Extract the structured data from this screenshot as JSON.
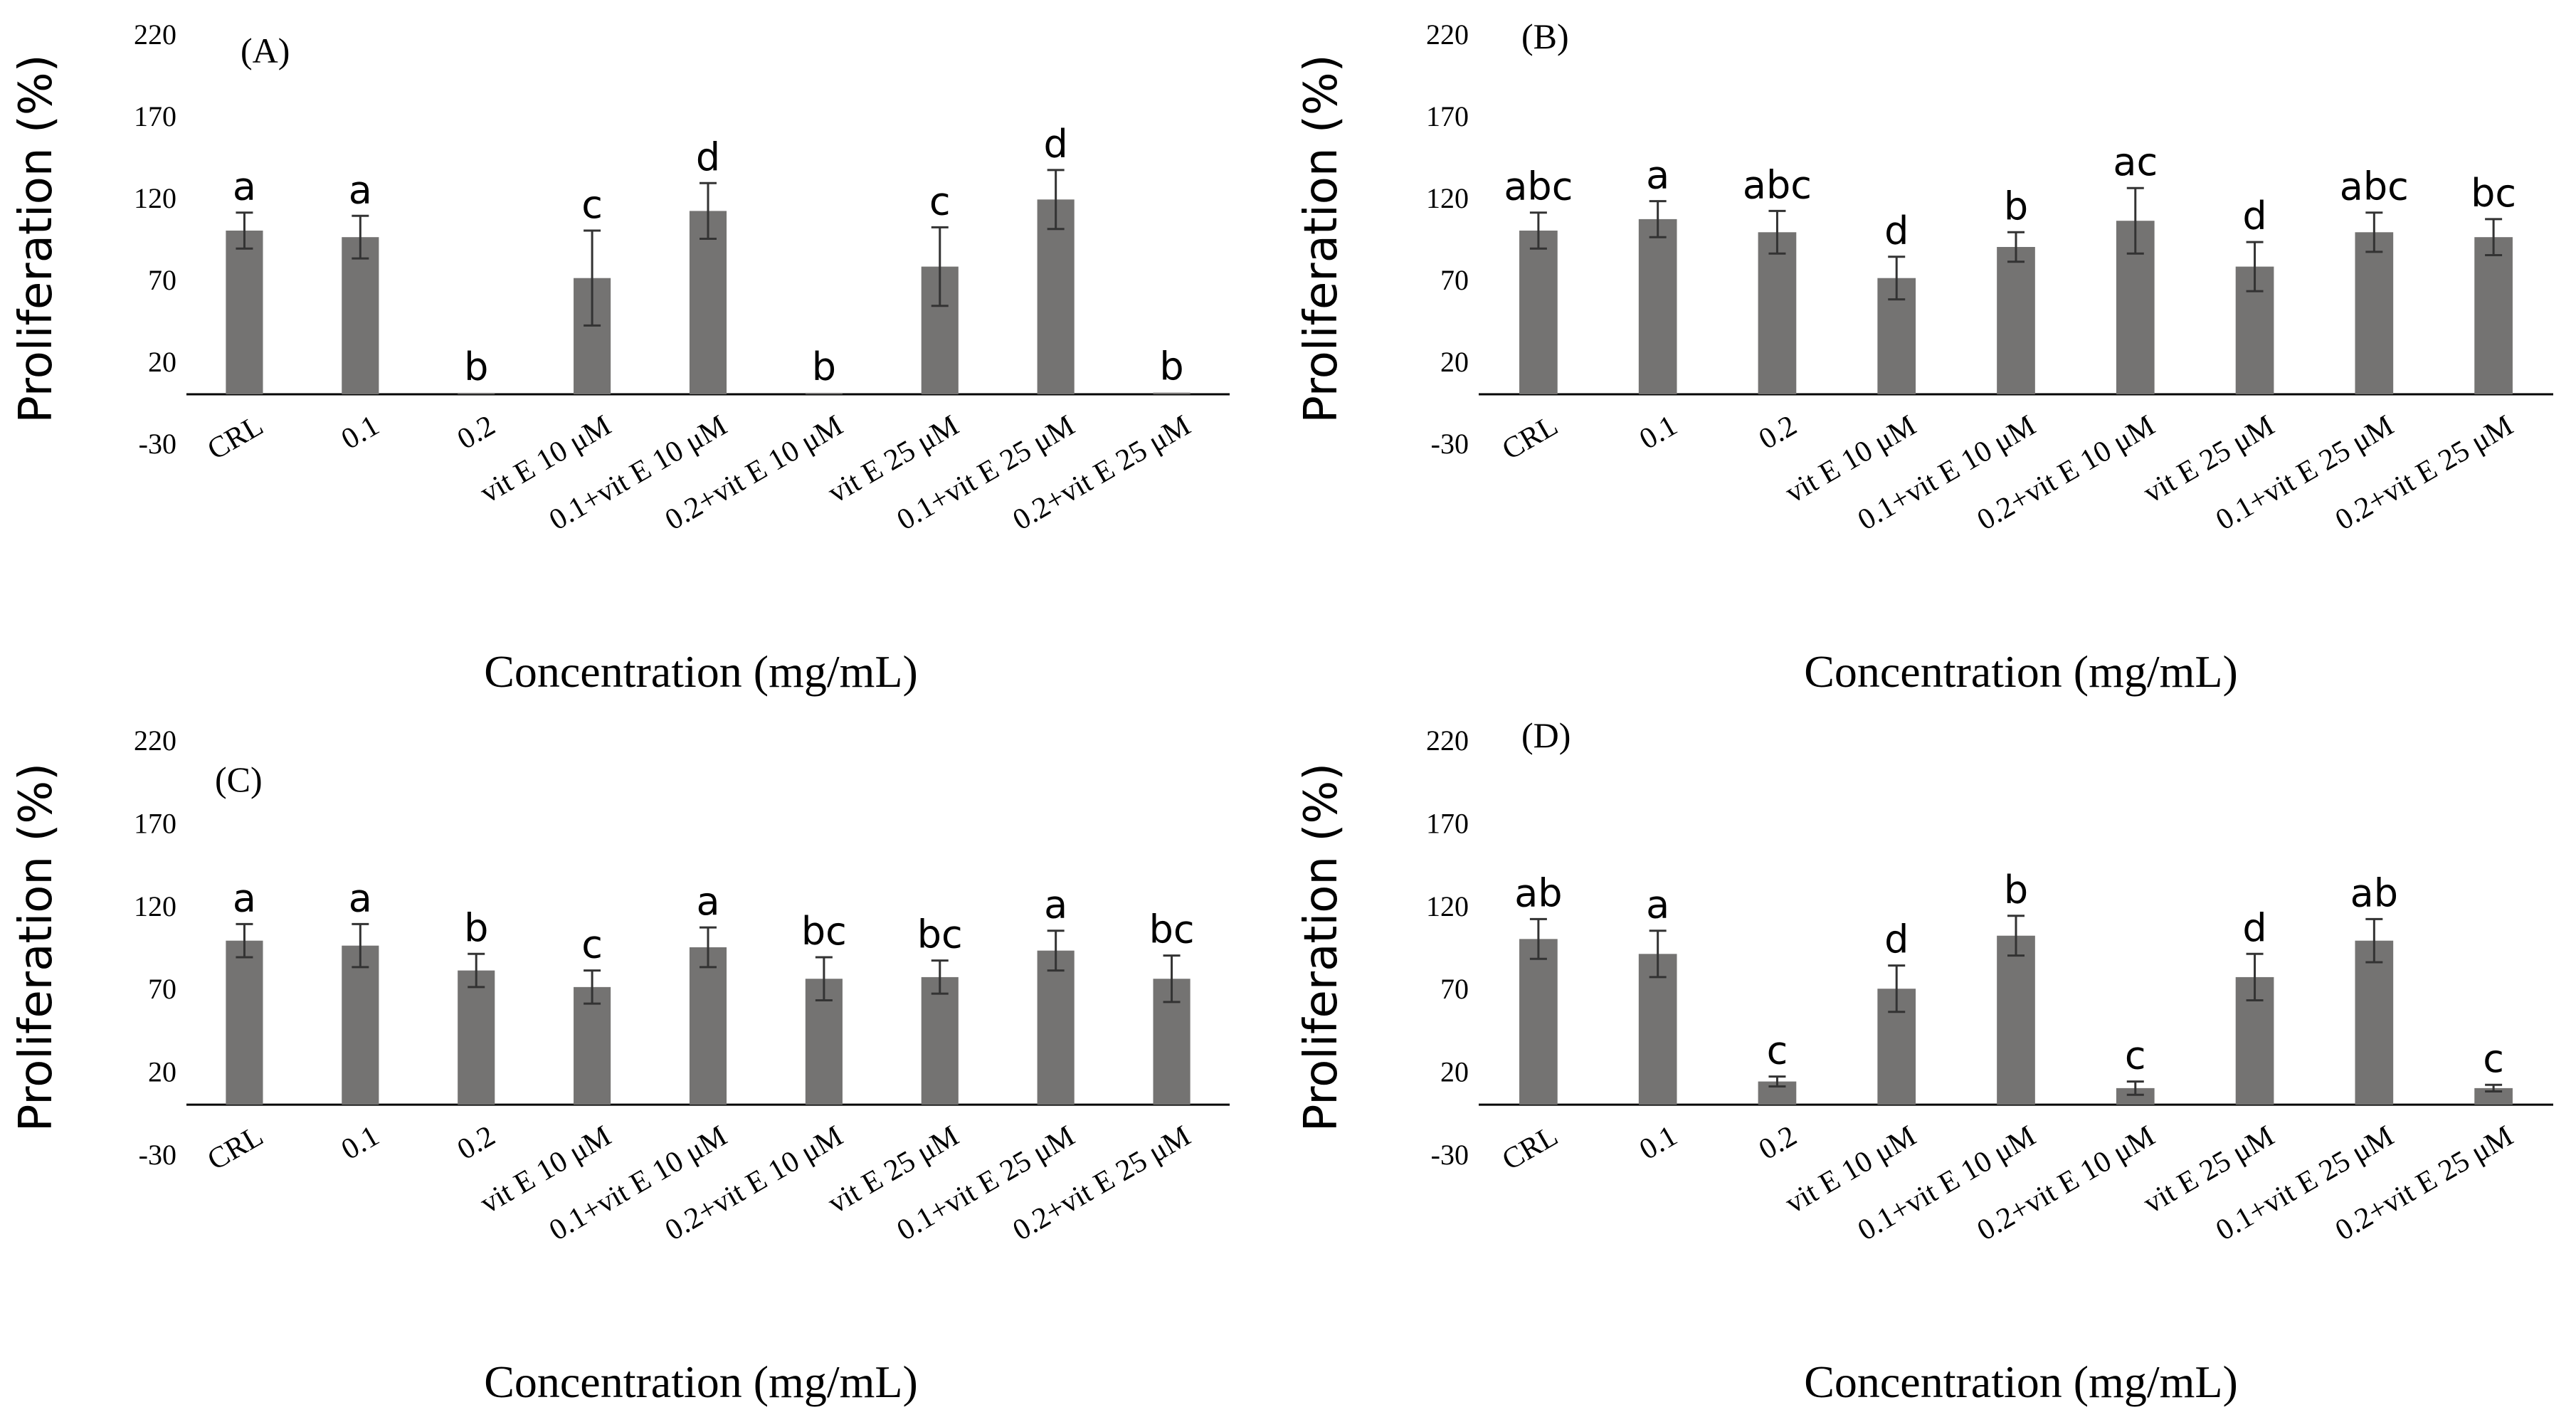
{
  "chart_data": [
    {
      "type": "bar",
      "title": "(A)",
      "xlabel": "Concentration (mg/mL)",
      "ylabel": "Proliferation (%)",
      "ylim": [
        -30,
        220
      ],
      "yticks": [
        "220",
        "170",
        "120",
        "70",
        "20",
        "-30"
      ],
      "categories": [
        "CRL",
        "0.1",
        "0.2",
        "vit E 10 μM",
        "0.1+vit E 10 μM",
        "0.2+vit E 10 μM",
        "vit E 25 μM",
        "0.1+vit E 25 μM",
        "0.2+vit E 25 μM"
      ],
      "values": [
        100,
        96,
        0.5,
        71,
        112,
        0.5,
        78,
        119,
        1
      ],
      "errors": [
        11,
        13,
        0,
        29,
        17,
        0,
        24,
        18,
        0
      ],
      "letters": [
        "a",
        "a",
        "b",
        "c",
        "d",
        "b",
        "c",
        "d",
        "b"
      ],
      "bar_color": "#747372"
    },
    {
      "type": "bar",
      "title": "(B)",
      "xlabel": "Concentration (mg/mL)",
      "ylabel": "Proliferation (%)",
      "ylim": [
        -30,
        220
      ],
      "yticks": [
        "220",
        "170",
        "120",
        "70",
        "20",
        "-30"
      ],
      "categories": [
        "CRL",
        "0.1",
        "0.2",
        "vit E 10 μM",
        "0.1+vit E 10 μM",
        "0.2+vit E 10 μM",
        "vit E 25 μM",
        "0.1+vit E 25 μM",
        "0.2+vit E 25 μM"
      ],
      "values": [
        100,
        107,
        99,
        71,
        90,
        106,
        78,
        99,
        96
      ],
      "errors": [
        11,
        11,
        13,
        13,
        9,
        20,
        15,
        12,
        11
      ],
      "letters": [
        "abc",
        "a",
        "abc",
        "d",
        "b",
        "ac",
        "d",
        "abc",
        "bc"
      ],
      "bar_color": "#747372"
    },
    {
      "type": "bar",
      "title": "(C)",
      "xlabel": "Concentration (mg/mL)",
      "ylabel": "Proliferation (%)",
      "ylim": [
        -30,
        220
      ],
      "yticks": [
        "220",
        "170",
        "120",
        "70",
        "20",
        "-30"
      ],
      "categories": [
        "CRL",
        "0.1",
        "0.2",
        "vit E 10 μM",
        "0.1+vit E 10 μM",
        "0.2+vit E 10 μM",
        "vit E 25 μM",
        "0.1+vit E 25 μM",
        "0.2+vit E 25 μM"
      ],
      "values": [
        99,
        96,
        81,
        71,
        95,
        76,
        77,
        93,
        76
      ],
      "errors": [
        10,
        13,
        10,
        10,
        12,
        13,
        10,
        12,
        14
      ],
      "letters": [
        "a",
        "a",
        "b",
        "c",
        "a",
        "bc",
        "bc",
        "a",
        "bc"
      ],
      "bar_color": "#747372"
    },
    {
      "type": "bar",
      "title": "(D)",
      "xlabel": "Concentration (mg/mL)",
      "ylabel": "Proliferation (%)",
      "ylim": [
        -30,
        220
      ],
      "yticks": [
        "220",
        "170",
        "120",
        "70",
        "20",
        "-30"
      ],
      "categories": [
        "CRL",
        "0.1",
        "0.2",
        "vit E 10 μM",
        "0.1+vit E 10 μM",
        "0.2+vit E 10 μM",
        "vit E 25 μM",
        "0.1+vit E 25 μM",
        "0.2+vit E 25 μM"
      ],
      "values": [
        100,
        91,
        14,
        70,
        102,
        10,
        77,
        99,
        10
      ],
      "errors": [
        12,
        14,
        3,
        14,
        12,
        4,
        14,
        13,
        2
      ],
      "letters": [
        "ab",
        "a",
        "c",
        "d",
        "b",
        "c",
        "d",
        "ab",
        "c"
      ],
      "bar_color": "#747372"
    }
  ]
}
